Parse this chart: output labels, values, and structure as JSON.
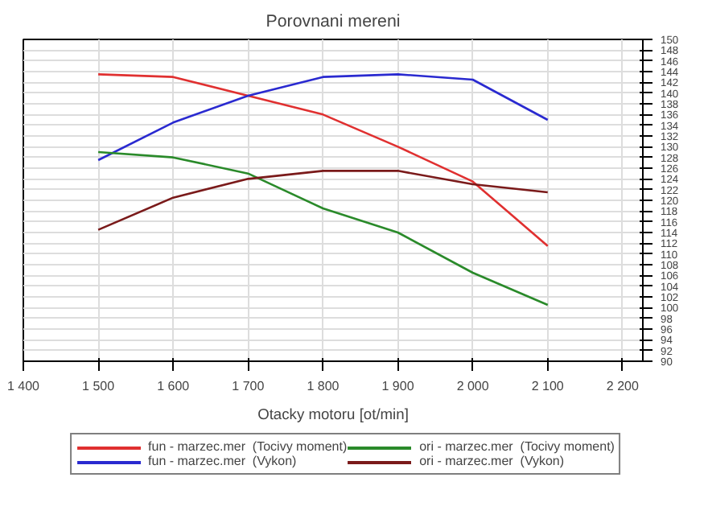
{
  "chart_data": {
    "type": "line",
    "title": "Porovnani mereni",
    "xlabel": "Otacky motoru [ot/min]",
    "x": [
      1500,
      1600,
      1700,
      1800,
      1900,
      2000,
      2100
    ],
    "series": [
      {
        "name": "fun - marzec.mer  (Tocivy moment)",
        "color": "#e03030",
        "values": [
          143.5,
          143,
          139.5,
          136,
          130,
          123.5,
          111.5
        ]
      },
      {
        "name": "fun - marzec.mer  (Vykon)",
        "color": "#2a2ad0",
        "values": [
          127.5,
          134.5,
          139.5,
          143,
          143.5,
          142.5,
          135
        ]
      },
      {
        "name": "ori - marzec.mer  (Tocivy moment)",
        "color": "#2a8a2a",
        "values": [
          129,
          128,
          125,
          118.5,
          114,
          106.5,
          100.5
        ]
      },
      {
        "name": "ori - marzec.mer  (Vykon)",
        "color": "#7a1a1a",
        "values": [
          114.5,
          120.5,
          124,
          125.5,
          125.5,
          123,
          121.5
        ]
      }
    ],
    "xlim": [
      1400,
      2227
    ],
    "xticks": [
      {
        "value": 1400,
        "label": "1 400"
      },
      {
        "value": 1500,
        "label": "1 500"
      },
      {
        "value": 1600,
        "label": "1 600"
      },
      {
        "value": 1700,
        "label": "1 700"
      },
      {
        "value": 1800,
        "label": "1 800"
      },
      {
        "value": 1900,
        "label": "1 900"
      },
      {
        "value": 2000,
        "label": "2 000"
      },
      {
        "value": 2100,
        "label": "2 100"
      },
      {
        "value": 2200,
        "label": "2 200"
      }
    ],
    "ylim": [
      90,
      150
    ],
    "yticks": [
      90,
      92,
      94,
      96,
      98,
      100,
      102,
      104,
      106,
      108,
      110,
      112,
      114,
      116,
      118,
      120,
      122,
      124,
      126,
      128,
      130,
      132,
      134,
      136,
      138,
      140,
      142,
      144,
      146,
      148,
      150
    ],
    "grid": true,
    "legend": "bottom",
    "marker": "none",
    "line_style": "solid"
  }
}
